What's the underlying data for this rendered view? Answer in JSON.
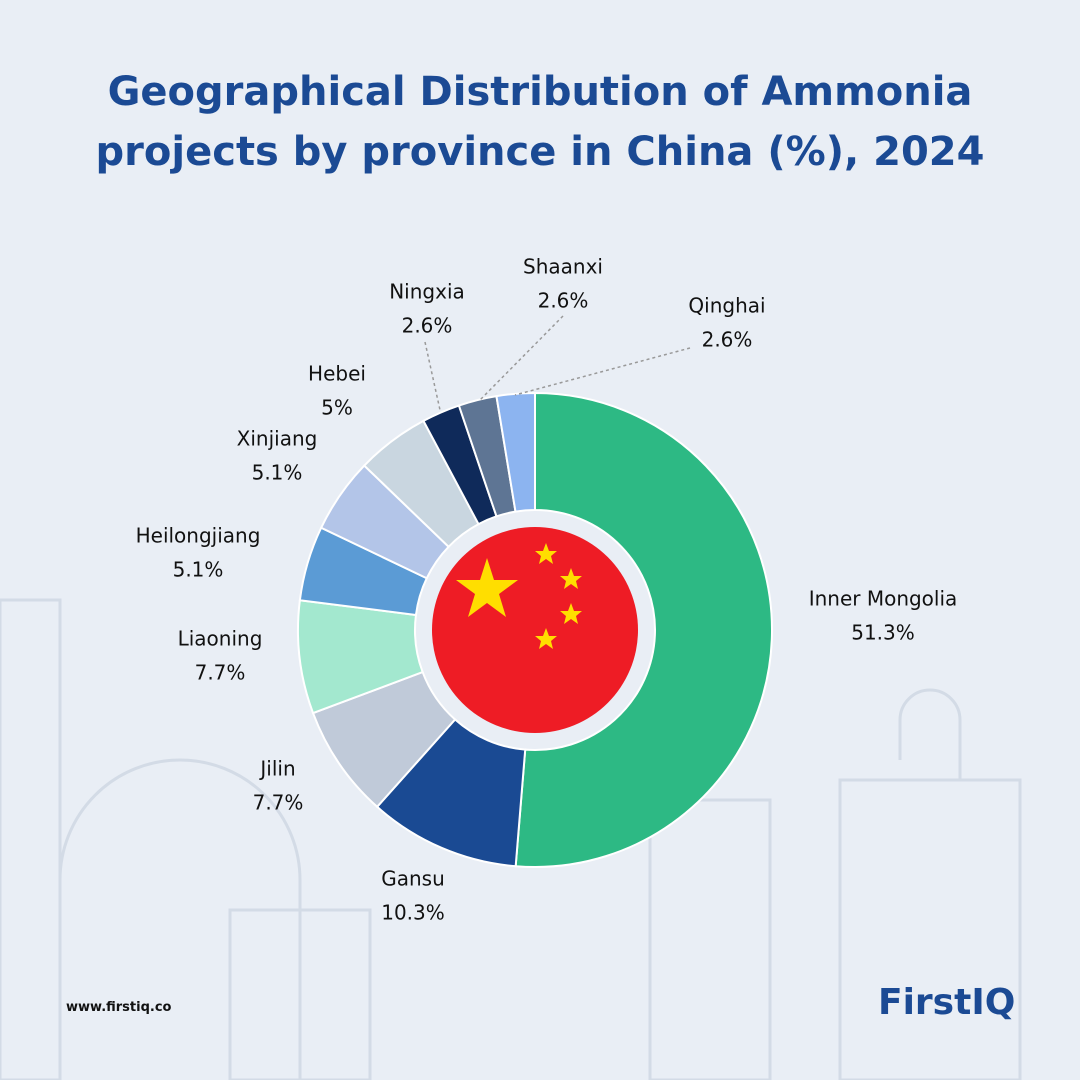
{
  "chart_data": {
    "type": "donut",
    "title": "Geographical Distribution of Ammonia projects by province in China (%), 2024",
    "categories": [
      "Inner Mongolia",
      "Gansu",
      "Jilin",
      "Liaoning",
      "Heilongjiang",
      "Xinjiang",
      "Hebei",
      "Ningxia",
      "Shaanxi",
      "Qinghai"
    ],
    "values": [
      51.3,
      10.3,
      7.7,
      7.7,
      5.1,
      5.1,
      5,
      2.6,
      2.6,
      2.6
    ],
    "value_labels": [
      "51.3%",
      "10.3%",
      "7.7%",
      "7.7%",
      "5.1%",
      "5.1%",
      "5%",
      "2.6%",
      "2.6%",
      "2.6%"
    ],
    "colors": [
      "#2db984",
      "#1a4a93",
      "#c0cad9",
      "#a3e8cf",
      "#5b9bd5",
      "#b3c5e8",
      "#c9d6e0",
      "#0f2a5a",
      "#5e7594",
      "#8cb4f0"
    ]
  },
  "footer": {
    "url": "www.firstiq.co",
    "logo": "FirstIQ"
  }
}
